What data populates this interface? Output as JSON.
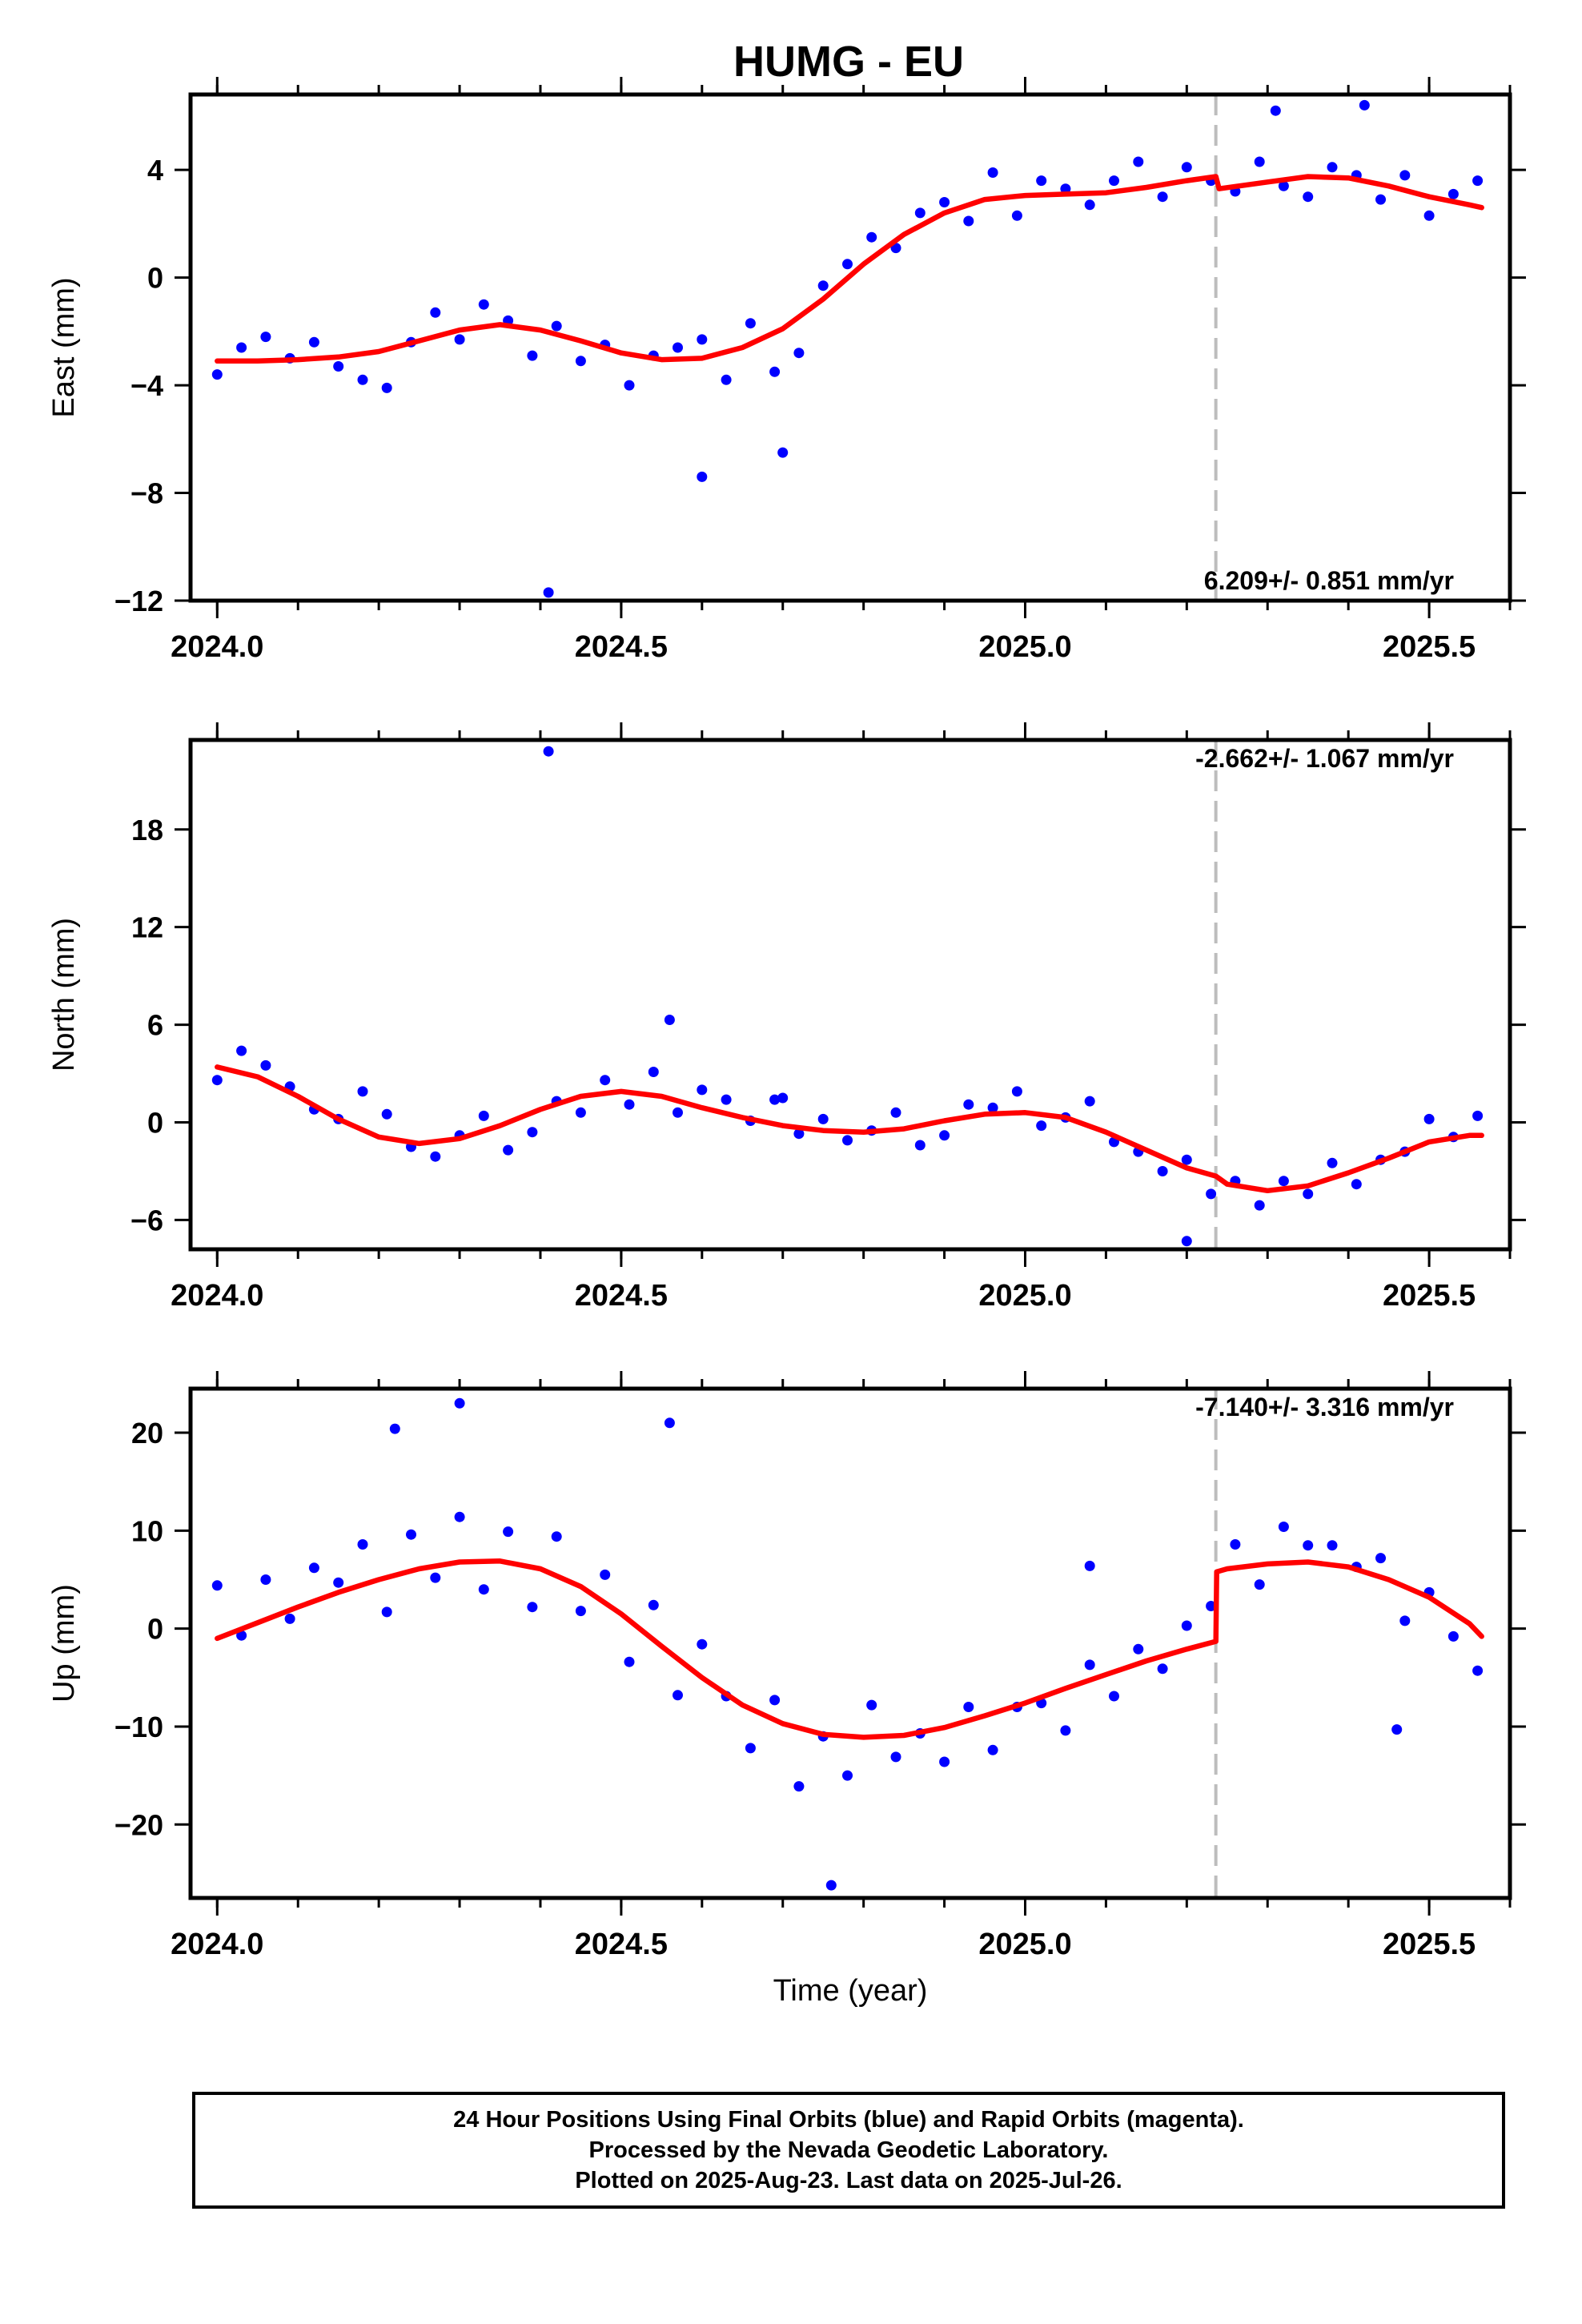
{
  "title": "HUMG - EU",
  "colors": {
    "points": "#0000ff",
    "model": "#ff0000",
    "break_line": "#bdbdbd",
    "frame": "#000000"
  },
  "footer": {
    "line1": "24 Hour Positions Using Final Orbits (blue) and Rapid Orbits (magenta).",
    "line2": "Processed by the Nevada Geodetic Laboratory.",
    "line3": "Plotted on 2025-Aug-23. Last data on 2025-Jul-26."
  },
  "chart_data": [
    {
      "type": "scatter",
      "component": "east",
      "title": "HUMG - EU",
      "xlabel": "",
      "ylabel": "East (mm)",
      "xlim": [
        2023.967,
        2025.6
      ],
      "ylim": [
        -12,
        6.8
      ],
      "xticks": [
        "2024.0",
        "2024.5",
        "2025.0",
        "2025.5"
      ],
      "yticks": [
        "4",
        "0",
        "−4",
        "−8",
        "−12"
      ],
      "rate_label": "6.209+/- 0.851 mm/yr",
      "break_year": 2025.236,
      "series": [
        {
          "role": "daily_positions",
          "x": [
            2024.0,
            2024.03,
            2024.06,
            2024.09,
            2024.12,
            2024.15,
            2024.18,
            2024.21,
            2024.24,
            2024.27,
            2024.3,
            2024.33,
            2024.36,
            2024.39,
            2024.42,
            2024.45,
            2024.48,
            2024.51,
            2024.54,
            2024.57,
            2024.6,
            2024.63,
            2024.66,
            2024.69,
            2024.72,
            2024.75,
            2024.78,
            2024.81,
            2024.84,
            2024.87,
            2024.9,
            2024.93,
            2024.96,
            2024.99,
            2025.02,
            2025.05,
            2025.08,
            2025.11,
            2025.14,
            2025.17,
            2025.2,
            2025.23,
            2025.26,
            2025.29,
            2025.32,
            2025.35,
            2025.38,
            2025.41,
            2025.44,
            2025.47,
            2025.5,
            2025.53,
            2025.56
          ],
          "y": [
            -3.6,
            -2.6,
            -2.2,
            -3.0,
            -2.4,
            -3.3,
            -3.8,
            -4.1,
            -2.4,
            -1.3,
            -2.3,
            -1.0,
            -1.6,
            -2.9,
            -1.8,
            -3.1,
            -2.5,
            -4.0,
            -2.9,
            -2.6,
            -2.3,
            -3.8,
            -1.7,
            -3.5,
            -2.8,
            -0.3,
            0.5,
            1.5,
            1.1,
            2.4,
            2.8,
            2.1,
            3.9,
            2.3,
            3.6,
            3.3,
            2.7,
            3.6,
            4.3,
            3.0,
            4.1,
            3.6,
            3.2,
            4.3,
            3.4,
            3.0,
            4.1,
            3.8,
            2.9,
            3.8,
            2.3,
            3.1,
            3.6
          ]
        },
        {
          "role": "outliers",
          "x": [
            2024.6,
            2024.7,
            2024.41,
            2025.42,
            2025.31
          ],
          "y": [
            -7.4,
            -6.5,
            -11.7,
            6.4,
            6.2
          ]
        },
        {
          "role": "model_fit",
          "x": [
            2024.0,
            2024.05,
            2024.1,
            2024.15,
            2024.2,
            2024.25,
            2024.3,
            2024.35,
            2024.4,
            2024.45,
            2024.5,
            2024.55,
            2024.6,
            2024.65,
            2024.7,
            2024.75,
            2024.8,
            2024.85,
            2024.9,
            2024.95,
            2025.0,
            2025.05,
            2025.1,
            2025.15,
            2025.2,
            2025.236,
            2025.24,
            2025.3,
            2025.35,
            2025.4,
            2025.45,
            2025.5,
            2025.55,
            2025.565
          ],
          "y": [
            -3.1,
            -3.1,
            -3.05,
            -2.95,
            -2.75,
            -2.35,
            -1.95,
            -1.75,
            -1.95,
            -2.35,
            -2.8,
            -3.05,
            -3.0,
            -2.6,
            -1.9,
            -0.8,
            0.5,
            1.6,
            2.4,
            2.9,
            3.05,
            3.1,
            3.15,
            3.35,
            3.6,
            3.75,
            3.3,
            3.55,
            3.75,
            3.7,
            3.4,
            3.0,
            2.7,
            2.6
          ]
        }
      ]
    },
    {
      "type": "scatter",
      "component": "north",
      "xlabel": "",
      "ylabel": "North (mm)",
      "xlim": [
        2023.967,
        2025.6
      ],
      "ylim": [
        -7.8,
        23.5
      ],
      "xticks": [
        "2024.0",
        "2024.5",
        "2025.0",
        "2025.5"
      ],
      "yticks": [
        "18",
        "12",
        "6",
        "0",
        "−6"
      ],
      "rate_label": "-2.662+/- 1.067 mm/yr",
      "break_year": 2025.236,
      "series": [
        {
          "role": "daily_positions",
          "x": [
            2024.0,
            2024.03,
            2024.06,
            2024.09,
            2024.12,
            2024.15,
            2024.18,
            2024.21,
            2024.24,
            2024.27,
            2024.3,
            2024.33,
            2024.36,
            2024.39,
            2024.42,
            2024.45,
            2024.48,
            2024.51,
            2024.54,
            2024.57,
            2024.6,
            2024.63,
            2024.66,
            2024.69,
            2024.72,
            2024.75,
            2024.78,
            2024.81,
            2024.84,
            2024.87,
            2024.9,
            2024.93,
            2024.96,
            2024.99,
            2025.02,
            2025.05,
            2025.08,
            2025.11,
            2025.14,
            2025.17,
            2025.2,
            2025.23,
            2025.26,
            2025.29,
            2025.32,
            2025.35,
            2025.38,
            2025.41,
            2025.44,
            2025.47,
            2025.5,
            2025.53,
            2025.56
          ],
          "y": [
            2.6,
            4.4,
            3.5,
            2.2,
            0.8,
            0.2,
            1.9,
            0.5,
            -1.5,
            -2.1,
            -0.8,
            0.4,
            -1.7,
            -0.6,
            1.3,
            0.6,
            2.6,
            1.1,
            3.1,
            0.6,
            2.0,
            1.4,
            0.1,
            1.4,
            -0.7,
            0.2,
            -1.1,
            -0.5,
            0.6,
            -1.4,
            -0.8,
            1.1,
            0.9,
            1.9,
            -0.2,
            0.3,
            1.3,
            -1.2,
            -1.8,
            -3.0,
            -2.3,
            -4.4,
            -3.6,
            -5.1,
            -3.6,
            -4.4,
            -2.5,
            -3.8,
            -2.3,
            -1.8,
            0.2,
            -0.9,
            0.4
          ]
        },
        {
          "role": "outliers",
          "x": [
            2024.41,
            2024.56,
            2025.2,
            2024.7
          ],
          "y": [
            22.8,
            6.3,
            -7.3,
            1.5
          ]
        },
        {
          "role": "model_fit",
          "x": [
            2024.0,
            2024.05,
            2024.1,
            2024.15,
            2024.2,
            2024.25,
            2024.3,
            2024.35,
            2024.4,
            2024.45,
            2024.5,
            2024.55,
            2024.6,
            2024.65,
            2024.7,
            2024.75,
            2024.8,
            2024.85,
            2024.9,
            2024.95,
            2025.0,
            2025.05,
            2025.1,
            2025.15,
            2025.2,
            2025.236,
            2025.25,
            2025.3,
            2025.35,
            2025.4,
            2025.45,
            2025.5,
            2025.55,
            2025.565
          ],
          "y": [
            3.4,
            2.8,
            1.6,
            0.2,
            -0.9,
            -1.3,
            -1.0,
            -0.2,
            0.8,
            1.6,
            1.9,
            1.6,
            0.9,
            0.3,
            -0.2,
            -0.5,
            -0.6,
            -0.4,
            0.1,
            0.5,
            0.6,
            0.3,
            -0.6,
            -1.7,
            -2.8,
            -3.3,
            -3.8,
            -4.2,
            -3.9,
            -3.1,
            -2.2,
            -1.2,
            -0.8,
            -0.8
          ]
        }
      ]
    },
    {
      "type": "scatter",
      "component": "up",
      "xlabel": "Time (year)",
      "ylabel": "Up (mm)",
      "xlim": [
        2023.967,
        2025.6
      ],
      "ylim": [
        -27.5,
        24.5
      ],
      "xticks": [
        "2024.0",
        "2024.5",
        "2025.0",
        "2025.5"
      ],
      "yticks": [
        "20",
        "10",
        "0",
        "−10",
        "−20"
      ],
      "rate_label": "-7.140+/- 3.316 mm/yr",
      "break_year": 2025.236,
      "series": [
        {
          "role": "daily_positions",
          "x": [
            2024.0,
            2024.03,
            2024.06,
            2024.09,
            2024.12,
            2024.15,
            2024.18,
            2024.21,
            2024.24,
            2024.27,
            2024.3,
            2024.33,
            2024.36,
            2024.39,
            2024.42,
            2024.45,
            2024.48,
            2024.51,
            2024.54,
            2024.57,
            2024.6,
            2024.63,
            2024.66,
            2024.69,
            2024.72,
            2024.75,
            2024.78,
            2024.81,
            2024.84,
            2024.87,
            2024.9,
            2024.93,
            2024.96,
            2024.99,
            2025.02,
            2025.05,
            2025.08,
            2025.11,
            2025.14,
            2025.17,
            2025.2,
            2025.23,
            2025.26,
            2025.29,
            2025.32,
            2025.35,
            2025.38,
            2025.41,
            2025.44,
            2025.47,
            2025.5,
            2025.53,
            2025.56
          ],
          "y": [
            4.4,
            -0.7,
            5.0,
            1.0,
            6.2,
            4.7,
            8.6,
            1.7,
            9.6,
            5.2,
            11.4,
            4.0,
            9.9,
            2.2,
            9.4,
            1.8,
            5.5,
            -3.4,
            2.4,
            -6.8,
            -1.6,
            -6.9,
            -12.2,
            -7.3,
            -16.1,
            -11.0,
            -15.0,
            -7.8,
            -13.1,
            -10.7,
            -13.6,
            -8.0,
            -12.4,
            -8.0,
            -7.6,
            -10.4,
            -3.7,
            -6.9,
            -2.1,
            -4.1,
            0.3,
            2.3,
            8.6,
            4.5,
            10.4,
            8.5,
            8.5,
            6.3,
            7.2,
            0.8,
            3.7,
            -0.8,
            -4.3
          ]
        },
        {
          "role": "outliers",
          "x": [
            2024.3,
            2024.22,
            2024.56,
            2024.76,
            2025.08,
            2025.46
          ],
          "y": [
            23.0,
            20.4,
            21.0,
            -26.2,
            6.4,
            -10.3
          ]
        },
        {
          "role": "model_fit",
          "x": [
            2024.0,
            2024.05,
            2024.1,
            2024.15,
            2024.2,
            2024.25,
            2024.3,
            2024.35,
            2024.4,
            2024.45,
            2024.5,
            2024.55,
            2024.6,
            2024.65,
            2024.7,
            2024.75,
            2024.8,
            2024.85,
            2024.9,
            2024.95,
            2025.0,
            2025.05,
            2025.1,
            2025.15,
            2025.2,
            2025.236,
            2025.237,
            2025.25,
            2025.3,
            2025.35,
            2025.4,
            2025.45,
            2025.5,
            2025.55,
            2025.565
          ],
          "y": [
            -1.0,
            0.6,
            2.2,
            3.7,
            5.0,
            6.1,
            6.8,
            6.9,
            6.1,
            4.3,
            1.5,
            -1.8,
            -5.0,
            -7.8,
            -9.7,
            -10.8,
            -11.1,
            -10.9,
            -10.1,
            -8.9,
            -7.6,
            -6.1,
            -4.7,
            -3.3,
            -2.1,
            -1.3,
            5.8,
            6.1,
            6.6,
            6.8,
            6.3,
            5.0,
            3.2,
            0.5,
            -0.8
          ]
        }
      ]
    }
  ]
}
